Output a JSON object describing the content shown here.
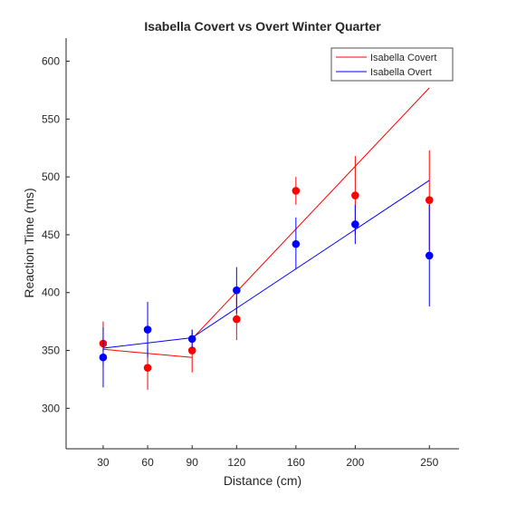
{
  "chart_data": {
    "type": "scatter",
    "title": "Isabella Covert vs Overt Winter Quarter",
    "xlabel": "Distance (cm)",
    "ylabel": "Reaction Time (ms)",
    "xlim": [
      5,
      270
    ],
    "ylim": [
      265,
      620
    ],
    "xticks": [
      30,
      60,
      90,
      120,
      160,
      200,
      250
    ],
    "yticks": [
      300,
      350,
      400,
      450,
      500,
      550,
      600
    ],
    "grid": false,
    "legend_position": "top-right",
    "series": [
      {
        "name": "Isabella Covert",
        "color": "#ff0000",
        "x": [
          30,
          60,
          90,
          120,
          160,
          200,
          250
        ],
        "y": [
          356,
          335,
          350,
          377,
          488,
          484,
          480
        ],
        "err_low": [
          337,
          316,
          331,
          359,
          476,
          450,
          437
        ],
        "err_high": [
          375,
          353,
          368,
          396,
          500,
          518,
          523
        ],
        "fit_lines": [
          {
            "x": [
              30,
              90
            ],
            "y": [
              351,
              344
            ]
          },
          {
            "x": [
              90,
              250
            ],
            "y": [
              360,
              577
            ]
          }
        ]
      },
      {
        "name": "Isabella Overt",
        "color": "#0000ff",
        "x": [
          30,
          60,
          90,
          120,
          160,
          200,
          250
        ],
        "y": [
          344,
          368,
          360,
          402,
          442,
          459,
          432
        ],
        "err_low": [
          318,
          344,
          352,
          382,
          420,
          442,
          388
        ],
        "err_high": [
          370,
          392,
          368,
          422,
          465,
          476,
          476
        ],
        "fit_lines": [
          {
            "x": [
              30,
              90
            ],
            "y": [
              352,
              361
            ]
          },
          {
            "x": [
              90,
              250
            ],
            "y": [
              361,
              497
            ]
          }
        ]
      }
    ]
  }
}
